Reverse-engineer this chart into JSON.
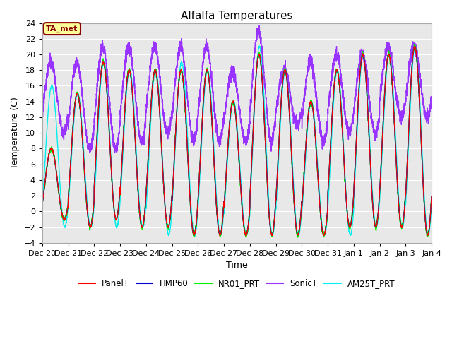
{
  "title": "Alfalfa Temperatures",
  "xlabel": "Time",
  "ylabel": "Temperature (C)",
  "ylim": [
    -4,
    24
  ],
  "annotation_text": "TA_met",
  "annotation_color": "#8B0000",
  "annotation_bg": "#FFFF99",
  "bg_color": "#E8E8E8",
  "colors": {
    "PanelT": "#FF0000",
    "HMP60": "#0000CC",
    "NR01_PRT": "#00EE00",
    "SonicT": "#9933FF",
    "AM25T_PRT": "#00EEEE"
  },
  "num_days": 15,
  "ppd": 288,
  "peaks_main": [
    8,
    15,
    19,
    18,
    18,
    18,
    18,
    14,
    20,
    18,
    14,
    18,
    20,
    20,
    21
  ],
  "troughs_main": [
    -1,
    -2,
    -1,
    -2,
    -2,
    -3,
    -3,
    -3,
    -3,
    -3,
    -3,
    -2,
    -2,
    -2,
    -3
  ],
  "peaks_sonic": [
    19,
    19,
    21,
    21,
    21,
    21,
    21,
    18,
    23,
    18,
    19,
    20,
    20,
    21,
    21
  ],
  "troughs_sonic": [
    10,
    8,
    8,
    9,
    10,
    9,
    9,
    9,
    9,
    11,
    9,
    10,
    10,
    12,
    12
  ],
  "peaks_am25": [
    16,
    15,
    19,
    18,
    18,
    19,
    18,
    14,
    21,
    18,
    14,
    18,
    20,
    20,
    21
  ],
  "troughs_am25": [
    -2,
    -2,
    -2,
    -2,
    -3,
    -3,
    -3,
    -3,
    -3,
    -3,
    -3,
    -3,
    -2,
    -2,
    -3
  ],
  "tick_labels": [
    "Dec 20",
    "Dec 21",
    "Dec 22",
    "Dec 23",
    "Dec 24",
    "Dec 25",
    "Dec 26",
    "Dec 27",
    "Dec 28",
    "Dec 29",
    "Dec 30",
    "Dec 31",
    "Jan 1",
    "Jan 2",
    "Jan 3",
    "Jan 4"
  ]
}
